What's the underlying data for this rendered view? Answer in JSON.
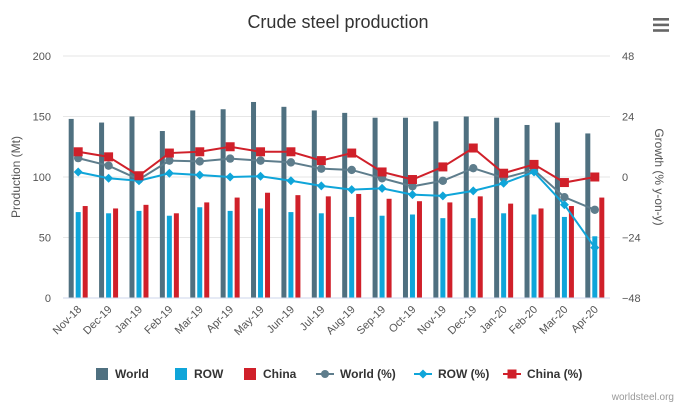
{
  "colors": {
    "world": "#4f7080",
    "row": "#0fa5d9",
    "china": "#d0202a",
    "world_pct": "#5e7d8c",
    "row_pct": "#0fa5d9",
    "china_pct": "#d0202a",
    "grid": "#e6e6e6"
  },
  "menu_icon": "hamburger-menu-icon",
  "credit": "worldsteel.org",
  "chart_data": {
    "type": "bar",
    "title": "Crude steel production",
    "ylabel": "Production (Mt)",
    "y2label": "Growth (% y-on-y)",
    "ylim": [
      0,
      200
    ],
    "yticks": [
      "0",
      "50",
      "100",
      "150",
      "200"
    ],
    "y2lim": [
      -48,
      48
    ],
    "y2ticks": [
      "−48",
      "−24",
      "0",
      "24",
      "48"
    ],
    "grid": true,
    "legend_position": "bottom",
    "categories": [
      "Nov-18",
      "Dec-19",
      "Jan-19",
      "Feb-19",
      "Mar-19",
      "Apr-19",
      "May-19",
      "Jun-19",
      "Jul-19",
      "Aug-19",
      "Sep-19",
      "Oct-19",
      "Nov-19",
      "Dec-19",
      "Jan-20",
      "Feb-20",
      "Mar-20",
      "Apr-20"
    ],
    "bar_series": [
      {
        "name": "World",
        "values": [
          148,
          145,
          150,
          138,
          155,
          156,
          162,
          158,
          155,
          153,
          149,
          149,
          146,
          150,
          149,
          143,
          145,
          136
        ]
      },
      {
        "name": "ROW",
        "values": [
          71,
          70,
          72,
          68,
          75,
          72,
          74,
          71,
          70,
          67,
          68,
          69,
          66,
          66,
          70,
          69,
          67,
          51
        ]
      },
      {
        "name": "China",
        "values": [
          76,
          74,
          77,
          70,
          79,
          83,
          87,
          85,
          84,
          86,
          82,
          80,
          79,
          84,
          78,
          74,
          76,
          83
        ]
      }
    ],
    "line_series": [
      {
        "name": "World (%)",
        "values": [
          7.5,
          4.5,
          -1,
          6.5,
          6.2,
          7.3,
          6.5,
          5.8,
          3.3,
          2.8,
          -0.5,
          -3.7,
          -1.5,
          3.5,
          -0.4,
          2.8,
          -8,
          -13
        ]
      },
      {
        "name": "ROW (%)",
        "values": [
          2,
          -0.5,
          -1.5,
          1.5,
          0.8,
          0,
          0.3,
          -1.5,
          -3.5,
          -5,
          -4.5,
          -7,
          -7.5,
          -5.5,
          -2.5,
          2,
          -11,
          -28
        ]
      },
      {
        "name": "China (%)",
        "values": [
          10,
          8,
          0.5,
          9.5,
          10,
          12,
          10,
          10,
          6.5,
          9.5,
          2,
          -1,
          4,
          11.5,
          1.5,
          5,
          -2.2,
          0
        ]
      }
    ]
  }
}
